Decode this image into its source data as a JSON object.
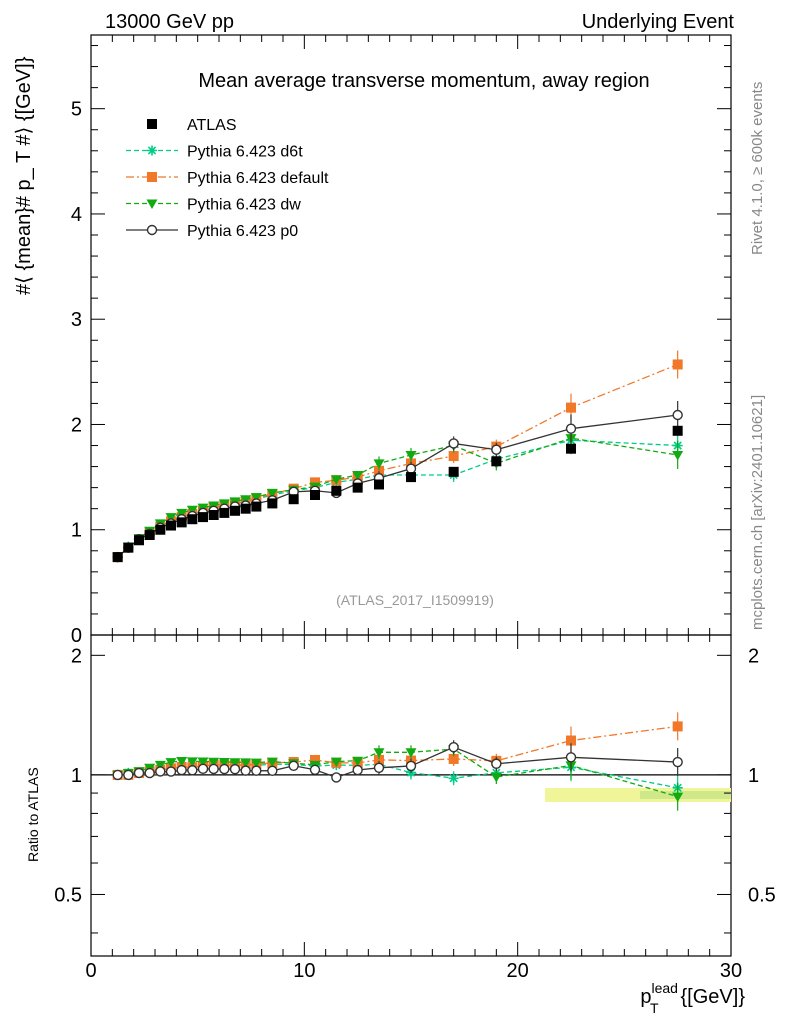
{
  "header": {
    "energy_label": "13000 GeV pp",
    "process_label": "Underlying Event",
    "side_top": "Rivet 4.1.0, ≥ 600k events",
    "side_bottom": "mcplots.cern.ch [arXiv:2401.10621]",
    "analysis_id": "(ATLAS_2017_I1509919)"
  },
  "chart_data": {
    "type": "scatter",
    "title": "Mean average transverse momentum, away region",
    "ylabel": "#⟨ {mean}# p_ T #⟩ {[GeV]}",
    "xlabel_main": "p",
    "xlabel_sup": "lead",
    "xlabel_sub": "T",
    "xlabel_unit": "{[GeV]}",
    "ratio_ylabel": "Ratio to ATLAS",
    "xlim": [
      0,
      30
    ],
    "ylim": [
      0,
      5.7
    ],
    "ratio_ylim": [
      0.35,
      2.25
    ],
    "x_ticks": [
      "0",
      "10",
      "20",
      "30"
    ],
    "y_ticks": [
      "0",
      "1",
      "2",
      "3",
      "4",
      "5"
    ],
    "ratio_ticks": [
      "0.5",
      "1",
      "2"
    ],
    "x": [
      1.25,
      1.75,
      2.25,
      2.75,
      3.25,
      3.75,
      4.25,
      4.75,
      5.25,
      5.75,
      6.25,
      6.75,
      7.25,
      7.75,
      8.5,
      9.5,
      10.5,
      11.5,
      12.5,
      13.5,
      15.0,
      17.0,
      19.0,
      22.5,
      27.5
    ],
    "series": [
      {
        "name": "ATLAS",
        "color": "#000000",
        "marker": "square",
        "values": [
          0.74,
          0.83,
          0.9,
          0.95,
          1.0,
          1.04,
          1.07,
          1.1,
          1.12,
          1.14,
          1.16,
          1.18,
          1.2,
          1.22,
          1.25,
          1.29,
          1.33,
          1.37,
          1.4,
          1.43,
          1.5,
          1.55,
          1.65,
          1.77,
          1.94
        ]
      },
      {
        "name": "Pythia 6.423 d6t",
        "color": "#00cc88",
        "marker": "star",
        "values": [
          0.74,
          0.84,
          0.91,
          0.97,
          1.03,
          1.08,
          1.12,
          1.15,
          1.18,
          1.21,
          1.23,
          1.25,
          1.27,
          1.29,
          1.33,
          1.37,
          1.4,
          1.45,
          1.48,
          1.52,
          1.52,
          1.52,
          1.67,
          1.85,
          1.8
        ]
      },
      {
        "name": "Pythia 6.423 default",
        "color": "#f07828",
        "marker": "square",
        "values": [
          0.74,
          0.83,
          0.91,
          0.97,
          1.03,
          1.08,
          1.12,
          1.15,
          1.18,
          1.21,
          1.23,
          1.25,
          1.27,
          1.3,
          1.34,
          1.39,
          1.45,
          1.47,
          1.5,
          1.56,
          1.63,
          1.7,
          1.79,
          2.16,
          2.57
        ]
      },
      {
        "name": "Pythia 6.423 dw",
        "color": "#11aa11",
        "marker": "triangle-down",
        "values": [
          0.74,
          0.84,
          0.92,
          0.99,
          1.06,
          1.12,
          1.16,
          1.19,
          1.21,
          1.23,
          1.25,
          1.27,
          1.29,
          1.31,
          1.35,
          1.38,
          1.41,
          1.48,
          1.52,
          1.63,
          1.71,
          1.8,
          1.63,
          1.87,
          1.71
        ]
      },
      {
        "name": "Pythia 6.423 p0",
        "color": "#333333",
        "marker": "open-circle",
        "values": [
          0.74,
          0.83,
          0.91,
          0.96,
          1.02,
          1.06,
          1.1,
          1.13,
          1.16,
          1.18,
          1.2,
          1.22,
          1.23,
          1.25,
          1.28,
          1.36,
          1.37,
          1.35,
          1.44,
          1.49,
          1.58,
          1.82,
          1.76,
          1.96,
          2.09
        ]
      }
    ]
  }
}
